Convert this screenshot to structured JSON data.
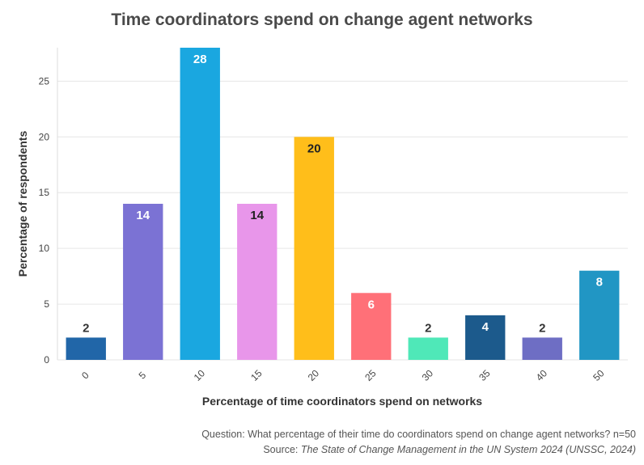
{
  "chart_data": {
    "type": "bar",
    "title": "Time coordinators spend on change agent networks",
    "xlabel": "Percentage of time coordinators spend on networks",
    "ylabel": "Percentage of respondents",
    "categories": [
      "0",
      "5",
      "10",
      "15",
      "20",
      "25",
      "30",
      "35",
      "40",
      "50"
    ],
    "values": [
      2,
      14,
      28,
      14,
      20,
      6,
      2,
      4,
      2,
      8
    ],
    "colors": [
      "#2166a8",
      "#7b72d4",
      "#1aa7e0",
      "#e896ea",
      "#ffbe1a",
      "#ff7078",
      "#4fe8b8",
      "#1c5a8c",
      "#6e6ec4",
      "#2196c4"
    ],
    "label_colors": [
      "#333333",
      "#ffffff",
      "#ffffff",
      "#222222",
      "#222222",
      "#ffffff",
      "#333333",
      "#ffffff",
      "#333333",
      "#ffffff"
    ],
    "label_inside": [
      false,
      true,
      true,
      true,
      true,
      true,
      false,
      true,
      false,
      true
    ],
    "ylim": [
      0,
      28
    ],
    "yticks": [
      0,
      5,
      10,
      15,
      20,
      25
    ],
    "grid": true,
    "legend": "none"
  },
  "footer": {
    "question": "Question: What percentage of their time do coordinators spend on change agent networks? n=50",
    "source_prefix": "Source: ",
    "source_title": "The State of Change Management in the UN System 2024 (UNSSC, 2024)"
  }
}
